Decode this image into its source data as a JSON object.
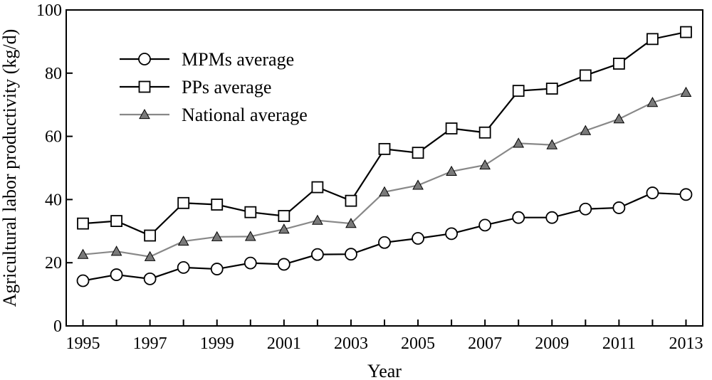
{
  "chart_data": {
    "type": "line",
    "xlabel": "Year",
    "ylabel": "Agricultural labor productivity (kg/d)",
    "xlim": [
      1994.5,
      2013.5
    ],
    "ylim": [
      0,
      100
    ],
    "x_ticks": [
      1995,
      1997,
      1999,
      2001,
      2003,
      2005,
      2007,
      2009,
      2011,
      2013
    ],
    "y_ticks": [
      0,
      20,
      40,
      60,
      80,
      100
    ],
    "grid": false,
    "legend_position": "top-left",
    "x": [
      1995,
      1996,
      1997,
      1998,
      1999,
      2000,
      2001,
      2002,
      2003,
      2004,
      2005,
      2006,
      2007,
      2008,
      2009,
      2010,
      2011,
      2012,
      2013
    ],
    "series": [
      {
        "name": "MPMs average",
        "marker": "circle",
        "line_color": "#000000",
        "marker_fill": "#ffffff",
        "values": [
          14.3,
          16.2,
          14.9,
          18.5,
          18.0,
          19.9,
          19.5,
          22.6,
          22.7,
          26.4,
          27.7,
          29.2,
          31.9,
          34.3,
          34.3,
          37.0,
          37.4,
          42.1,
          41.6
        ]
      },
      {
        "name": "PPs average",
        "marker": "square",
        "line_color": "#000000",
        "marker_fill": "#ffffff",
        "values": [
          32.4,
          33.2,
          28.6,
          38.9,
          38.4,
          36.0,
          34.8,
          43.9,
          39.6,
          56.0,
          54.8,
          62.5,
          61.2,
          74.4,
          75.1,
          79.3,
          83.0,
          90.8,
          93.0
        ]
      },
      {
        "name": "National average",
        "marker": "triangle",
        "line_color": "#888888",
        "marker_fill": "#7a7a7a",
        "values": [
          22.6,
          23.6,
          21.9,
          26.8,
          28.2,
          28.3,
          30.6,
          33.4,
          32.4,
          42.4,
          44.5,
          48.9,
          50.9,
          57.8,
          57.3,
          61.8,
          65.5,
          70.7,
          73.9
        ]
      }
    ]
  }
}
